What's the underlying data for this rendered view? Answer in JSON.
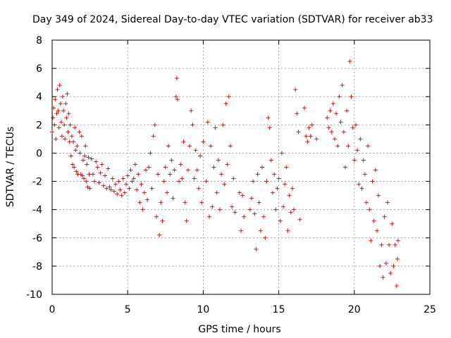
{
  "chart_data": {
    "type": "scatter",
    "title": "Day 349 of 2024, Sidereal Day-to-day VTEC variation (SDTVAR) for receiver ab33",
    "xlabel": "GPS time / hours",
    "ylabel": "SDTVAR / TECUs",
    "xlim": [
      0,
      25
    ],
    "ylim": [
      -10,
      8
    ],
    "xticks": [
      0,
      5,
      10,
      15,
      20,
      25
    ],
    "yticks": [
      -10,
      -8,
      -6,
      -4,
      -2,
      0,
      2,
      4,
      6,
      8
    ],
    "grid": true,
    "marker": "+",
    "series": [
      {
        "name": "SDTVAR",
        "color": "#ff0000",
        "points": [
          [
            0.0,
            1.5
          ],
          [
            0.05,
            2.5
          ],
          [
            0.1,
            3.2
          ],
          [
            0.15,
            2.0
          ],
          [
            0.2,
            3.8
          ],
          [
            0.25,
            1.0
          ],
          [
            0.3,
            2.8
          ],
          [
            0.35,
            4.5
          ],
          [
            0.4,
            3.0
          ],
          [
            0.45,
            1.8
          ],
          [
            0.5,
            4.8
          ],
          [
            0.55,
            3.5
          ],
          [
            0.6,
            2.2
          ],
          [
            0.65,
            1.2
          ],
          [
            0.7,
            4.0
          ],
          [
            0.75,
            3.0
          ],
          [
            0.8,
            2.0
          ],
          [
            0.85,
            1.0
          ],
          [
            0.9,
            3.5
          ],
          [
            0.95,
            2.5
          ],
          [
            1.0,
            4.2
          ],
          [
            1.05,
            1.5
          ],
          [
            1.1,
            2.8
          ],
          [
            1.15,
            0.8
          ],
          [
            1.2,
            2.0
          ],
          [
            1.25,
            -0.2
          ],
          [
            1.3,
            1.2
          ],
          [
            1.35,
            -0.8
          ],
          [
            1.4,
            0.8
          ],
          [
            1.45,
            -1.0
          ],
          [
            1.5,
            1.8
          ],
          [
            1.55,
            0.2
          ],
          [
            1.6,
            -1.3
          ],
          [
            1.65,
            0.5
          ],
          [
            1.7,
            -1.5
          ],
          [
            1.8,
            1.5
          ],
          [
            1.85,
            0.0
          ],
          [
            1.9,
            -1.5
          ],
          [
            1.95,
            1.2
          ],
          [
            2.0,
            -1.6
          ],
          [
            2.05,
            -0.5
          ],
          [
            2.1,
            -1.8
          ],
          [
            2.15,
            -0.2
          ],
          [
            2.2,
            0.5
          ],
          [
            2.25,
            -2.0
          ],
          [
            2.3,
            -0.8
          ],
          [
            2.35,
            -2.4
          ],
          [
            2.4,
            -0.3
          ],
          [
            2.45,
            -1.5
          ],
          [
            2.5,
            -2.5
          ],
          [
            2.6,
            -0.4
          ],
          [
            2.7,
            -1.5
          ],
          [
            2.8,
            -2.0
          ],
          [
            2.9,
            -0.6
          ],
          [
            3.0,
            -1.0
          ],
          [
            3.1,
            -2.1
          ],
          [
            3.2,
            -1.4
          ],
          [
            3.3,
            -0.8
          ],
          [
            3.4,
            -2.3
          ],
          [
            3.5,
            -1.6
          ],
          [
            3.6,
            -2.5
          ],
          [
            3.7,
            -1.1
          ],
          [
            3.8,
            -2.4
          ],
          [
            3.9,
            -2.6
          ],
          [
            4.0,
            -1.8
          ],
          [
            4.1,
            -2.7
          ],
          [
            4.2,
            -2.2
          ],
          [
            4.3,
            -2.9
          ],
          [
            4.4,
            -2.0
          ],
          [
            4.5,
            -2.6
          ],
          [
            4.6,
            -3.0
          ],
          [
            4.7,
            -1.8
          ],
          [
            4.8,
            -2.8
          ],
          [
            4.9,
            -2.2
          ],
          [
            5.0,
            -1.6
          ],
          [
            5.1,
            -2.5
          ],
          [
            5.2,
            -1.2
          ],
          [
            5.3,
            -2.0
          ],
          [
            5.4,
            -1.8
          ],
          [
            5.5,
            -0.8
          ],
          [
            5.6,
            -2.6
          ],
          [
            5.7,
            -1.5
          ],
          [
            5.8,
            -3.5
          ],
          [
            5.9,
            -2.2
          ],
          [
            6.0,
            -4.0
          ],
          [
            6.1,
            -2.8
          ],
          [
            6.2,
            -1.2
          ],
          [
            6.3,
            -3.3
          ],
          [
            6.4,
            -1.0
          ],
          [
            6.5,
            0.0
          ],
          [
            6.6,
            -2.5
          ],
          [
            6.7,
            1.2
          ],
          [
            6.8,
            2.0
          ],
          [
            6.9,
            -4.5
          ],
          [
            7.0,
            -1.5
          ],
          [
            7.1,
            -5.8
          ],
          [
            7.2,
            -3.5
          ],
          [
            7.3,
            -4.8
          ],
          [
            7.4,
            -2.0
          ],
          [
            7.5,
            -1.0
          ],
          [
            7.6,
            -2.8
          ],
          [
            7.7,
            0.5
          ],
          [
            7.8,
            -1.5
          ],
          [
            7.9,
            -0.5
          ],
          [
            8.0,
            -3.2
          ],
          [
            8.1,
            -1.2
          ],
          [
            8.2,
            4.0
          ],
          [
            8.25,
            5.3
          ],
          [
            8.3,
            3.8
          ],
          [
            8.4,
            -2.0
          ],
          [
            8.5,
            -0.8
          ],
          [
            8.6,
            -1.8
          ],
          [
            8.7,
            0.8
          ],
          [
            8.8,
            -3.5
          ],
          [
            8.9,
            -4.8
          ],
          [
            9.0,
            -1.2
          ],
          [
            9.1,
            0.5
          ],
          [
            9.2,
            3.0
          ],
          [
            9.3,
            2.0
          ],
          [
            9.4,
            -1.8
          ],
          [
            9.5,
            0.2
          ],
          [
            9.6,
            -1.2
          ],
          [
            9.7,
            -2.5
          ],
          [
            9.8,
            -0.2
          ],
          [
            9.9,
            -3.5
          ],
          [
            10.0,
            0.8
          ],
          [
            10.2,
            -2.0
          ],
          [
            10.3,
            2.2
          ],
          [
            10.4,
            -4.5
          ],
          [
            10.5,
            0.5
          ],
          [
            10.6,
            -3.8
          ],
          [
            10.7,
            -1.0
          ],
          [
            10.8,
            1.8
          ],
          [
            10.9,
            -2.8
          ],
          [
            11.0,
            -0.5
          ],
          [
            11.1,
            -4.0
          ],
          [
            11.2,
            -1.5
          ],
          [
            11.3,
            2.0
          ],
          [
            11.4,
            -2.2
          ],
          [
            11.5,
            3.5
          ],
          [
            11.6,
            -0.8
          ],
          [
            11.7,
            4.0
          ],
          [
            11.8,
            0.5
          ],
          [
            11.9,
            -3.8
          ],
          [
            12.0,
            -1.8
          ],
          [
            12.1,
            -4.2
          ],
          [
            12.4,
            -2.8
          ],
          [
            12.5,
            -5.5
          ],
          [
            12.6,
            -3.0
          ],
          [
            12.7,
            -4.5
          ],
          [
            13.1,
            -4.0
          ],
          [
            13.2,
            -3.2
          ],
          [
            13.3,
            -2.0
          ],
          [
            13.4,
            -4.3
          ],
          [
            13.5,
            -6.8
          ],
          [
            13.6,
            -1.5
          ],
          [
            13.7,
            -3.5
          ],
          [
            13.8,
            -5.5
          ],
          [
            13.9,
            -1.0
          ],
          [
            14.0,
            -4.5
          ],
          [
            14.1,
            -6.0
          ],
          [
            14.2,
            -2.0
          ],
          [
            14.3,
            2.5
          ],
          [
            14.4,
            1.8
          ],
          [
            14.5,
            -0.5
          ],
          [
            14.6,
            -2.8
          ],
          [
            14.7,
            -1.5
          ],
          [
            14.8,
            -4.0
          ],
          [
            14.9,
            -2.5
          ],
          [
            15.0,
            -1.8
          ],
          [
            15.1,
            -4.8
          ],
          [
            15.2,
            0.0
          ],
          [
            15.3,
            -3.8
          ],
          [
            15.4,
            -2.2
          ],
          [
            15.5,
            -1.0
          ],
          [
            15.6,
            -5.5
          ],
          [
            15.7,
            -3.0
          ],
          [
            15.8,
            -4.2
          ],
          [
            15.9,
            -2.5
          ],
          [
            16.0,
            -4.0
          ],
          [
            16.1,
            4.5
          ],
          [
            16.2,
            2.8
          ],
          [
            16.3,
            1.5
          ],
          [
            16.4,
            -4.7
          ],
          [
            16.7,
            3.2
          ],
          [
            16.8,
            1.2
          ],
          [
            16.9,
            0.8
          ],
          [
            17.0,
            1.8
          ],
          [
            17.1,
            1.2
          ],
          [
            17.2,
            2.0
          ],
          [
            17.5,
            1.0
          ],
          [
            18.2,
            2.5
          ],
          [
            18.3,
            1.8
          ],
          [
            18.4,
            3.0
          ],
          [
            18.5,
            1.5
          ],
          [
            18.6,
            3.5
          ],
          [
            18.7,
            1.0
          ],
          [
            18.8,
            2.8
          ],
          [
            18.9,
            0.5
          ],
          [
            19.0,
            4.0
          ],
          [
            19.1,
            2.2
          ],
          [
            19.2,
            4.8
          ],
          [
            19.3,
            1.5
          ],
          [
            19.4,
            -1.0
          ],
          [
            19.5,
            3.0
          ],
          [
            19.6,
            0.5
          ],
          [
            19.7,
            6.5
          ],
          [
            19.8,
            4.0
          ],
          [
            19.9,
            1.8
          ],
          [
            20.0,
            -0.5
          ],
          [
            20.1,
            2.0
          ],
          [
            20.2,
            0.2
          ],
          [
            20.3,
            -2.2
          ],
          [
            20.4,
            1.0
          ],
          [
            20.5,
            -2.5
          ],
          [
            20.6,
            -0.5
          ],
          [
            20.7,
            -1.5
          ],
          [
            20.8,
            -3.5
          ],
          [
            20.9,
            0.5
          ],
          [
            21.0,
            -4.0
          ],
          [
            21.1,
            -6.2
          ],
          [
            21.2,
            -2.0
          ],
          [
            21.3,
            -4.8
          ],
          [
            21.4,
            -1.2
          ],
          [
            21.5,
            -5.5
          ],
          [
            21.6,
            -3.0
          ],
          [
            21.7,
            -8.0
          ],
          [
            21.8,
            -6.5
          ],
          [
            21.9,
            -8.8
          ],
          [
            22.0,
            -4.5
          ],
          [
            22.1,
            -7.8
          ],
          [
            22.2,
            -3.5
          ],
          [
            22.3,
            -6.5
          ],
          [
            22.4,
            -8.5
          ],
          [
            22.5,
            -5.0
          ],
          [
            22.6,
            -8.0
          ],
          [
            22.7,
            -6.5
          ],
          [
            22.8,
            -9.4
          ],
          [
            22.85,
            -7.5
          ],
          [
            22.9,
            -6.2
          ]
        ]
      }
    ]
  }
}
